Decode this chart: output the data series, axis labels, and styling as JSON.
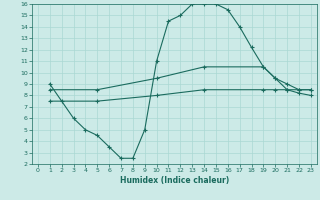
{
  "xlabel": "Humidex (Indice chaleur)",
  "xlim": [
    -0.5,
    23.5
  ],
  "ylim": [
    2,
    16
  ],
  "xticks": [
    0,
    1,
    2,
    3,
    4,
    5,
    6,
    7,
    8,
    9,
    10,
    11,
    12,
    13,
    14,
    15,
    16,
    17,
    18,
    19,
    20,
    21,
    22,
    23
  ],
  "yticks": [
    2,
    3,
    4,
    5,
    6,
    7,
    8,
    9,
    10,
    11,
    12,
    13,
    14,
    15,
    16
  ],
  "background_color": "#cceae7",
  "line_color": "#1a6b5e",
  "grid_color": "#aad8d3",
  "line1_x": [
    1,
    2,
    3,
    4,
    5,
    6,
    7,
    8,
    9,
    10,
    11,
    12,
    13,
    14,
    15,
    16,
    17,
    18,
    19,
    20,
    21,
    22,
    23
  ],
  "line1_y": [
    9,
    7.5,
    6,
    5,
    4.5,
    3.5,
    2.5,
    2.5,
    5,
    11,
    14.5,
    15,
    16,
    16,
    16,
    15.5,
    14,
    12.2,
    10.5,
    9.5,
    8.5,
    8.2,
    8
  ],
  "line2_x": [
    1,
    5,
    10,
    14,
    19,
    20,
    21,
    22,
    23
  ],
  "line2_y": [
    8.5,
    8.5,
    9.5,
    10.5,
    10.5,
    9.5,
    9.0,
    8.5,
    8.5
  ],
  "line3_x": [
    1,
    5,
    10,
    14,
    19,
    20,
    21,
    22,
    23
  ],
  "line3_y": [
    7.5,
    7.5,
    8.0,
    8.5,
    8.5,
    8.5,
    8.5,
    8.5,
    8.5
  ],
  "marker": "+"
}
